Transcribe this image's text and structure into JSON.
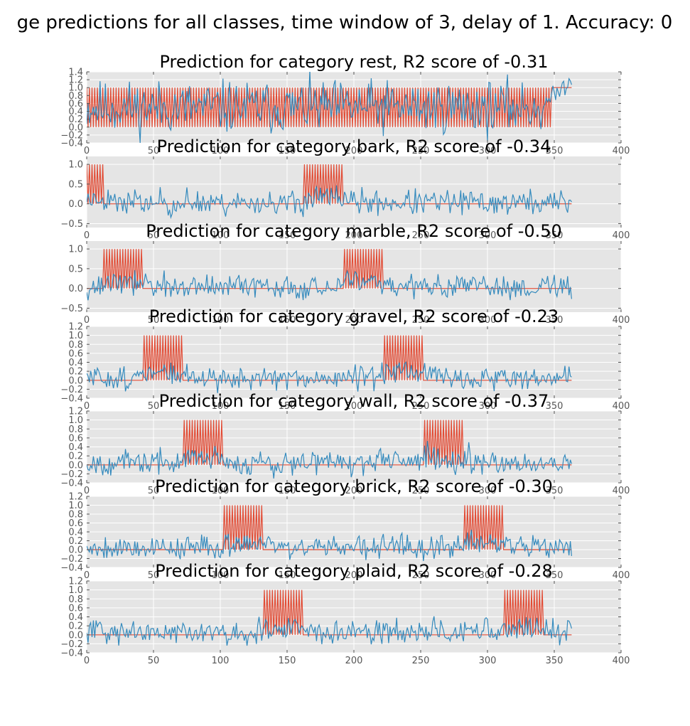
{
  "suptitle": "ge predictions for all classes, time window of 3, delay of 1. Accuracy: 0",
  "colors": {
    "background": "#E5E5E5",
    "grid": "#FFFFFF",
    "truth_line": "#E24A33",
    "prediction_line": "#348ABD",
    "tick_text": "#555555"
  },
  "chart_data": [
    {
      "type": "line",
      "title": "Prediction for category rest, R2 score of -0.31",
      "xlim": [
        0,
        400
      ],
      "ylim": [
        -0.4,
        1.4
      ],
      "xticks": [
        0,
        50,
        100,
        150,
        200,
        250,
        300,
        350,
        400
      ],
      "yticks": [
        -0.4,
        -0.2,
        0.0,
        0.2,
        0.4,
        0.6,
        0.8,
        1.0,
        1.2,
        1.4
      ],
      "grid": true,
      "x": {
        "start": 0,
        "end": 363,
        "step": 1
      },
      "series": [
        {
          "role": "target",
          "color": "#E24A33",
          "pattern": "alternating",
          "on_value": 1,
          "off_value": 0,
          "blocks": [
            {
              "start": 0,
              "end": 348
            }
          ],
          "after": {
            "from": 349,
            "value": 1
          }
        },
        {
          "role": "prediction",
          "color": "#348ABD",
          "kind": "noisy",
          "base": 0.5,
          "amplitude": 0.33,
          "seed": 11,
          "tail": {
            "from": 342,
            "to": 363,
            "start_value": 0.55,
            "end_value": 1.22
          }
        }
      ]
    },
    {
      "type": "line",
      "title": "Prediction for category bark, R2 score of -0.34",
      "xlim": [
        0,
        400
      ],
      "ylim": [
        -0.6,
        1.2
      ],
      "xticks": [
        0,
        50,
        100,
        150,
        200,
        250,
        300,
        350,
        400
      ],
      "yticks": [
        -0.5,
        0.0,
        0.5,
        1.0
      ],
      "grid": true,
      "x": {
        "start": 0,
        "end": 363,
        "step": 1
      },
      "series": [
        {
          "role": "target",
          "color": "#E24A33",
          "pattern": "alternating",
          "on_value": 1,
          "off_value": 0,
          "blocks": [
            {
              "start": 0,
              "end": 12
            },
            {
              "start": 163,
              "end": 191
            }
          ]
        },
        {
          "role": "prediction",
          "color": "#348ABD",
          "kind": "noisy",
          "base": 0.03,
          "amplitude": 0.16,
          "seed": 23,
          "boost": 0.12
        }
      ]
    },
    {
      "type": "line",
      "title": "Prediction for category marble, R2 score of -0.50",
      "xlim": [
        0,
        400
      ],
      "ylim": [
        -0.6,
        1.2
      ],
      "xticks": [
        0,
        50,
        100,
        150,
        200,
        250,
        300,
        350,
        400
      ],
      "yticks": [
        -0.5,
        0.0,
        0.5,
        1.0
      ],
      "grid": true,
      "x": {
        "start": 0,
        "end": 363,
        "step": 1
      },
      "series": [
        {
          "role": "target",
          "color": "#E24A33",
          "pattern": "alternating",
          "on_value": 1,
          "off_value": 0,
          "blocks": [
            {
              "start": 13,
              "end": 41
            },
            {
              "start": 193,
              "end": 221
            }
          ]
        },
        {
          "role": "prediction",
          "color": "#348ABD",
          "kind": "noisy",
          "base": 0.04,
          "amplitude": 0.15,
          "seed": 37,
          "boost": 0.12
        }
      ]
    },
    {
      "type": "line",
      "title": "Prediction for category gravel, R2 score of -0.23",
      "xlim": [
        0,
        400
      ],
      "ylim": [
        -0.4,
        1.2
      ],
      "xticks": [
        0,
        50,
        100,
        150,
        200,
        250,
        300,
        350,
        400
      ],
      "yticks": [
        -0.4,
        -0.2,
        0.0,
        0.2,
        0.4,
        0.6,
        0.8,
        1.0,
        1.2
      ],
      "grid": true,
      "x": {
        "start": 0,
        "end": 363,
        "step": 1
      },
      "series": [
        {
          "role": "target",
          "color": "#E24A33",
          "pattern": "alternating",
          "on_value": 1,
          "off_value": 0,
          "blocks": [
            {
              "start": 43,
              "end": 71
            },
            {
              "start": 223,
              "end": 251
            }
          ]
        },
        {
          "role": "prediction",
          "color": "#348ABD",
          "kind": "noisy",
          "base": 0.05,
          "amplitude": 0.13,
          "seed": 51,
          "boost": 0.12
        }
      ]
    },
    {
      "type": "line",
      "title": "Prediction for category wall, R2 score of -0.37",
      "xlim": [
        0,
        400
      ],
      "ylim": [
        -0.4,
        1.2
      ],
      "xticks": [
        0,
        50,
        100,
        150,
        200,
        250,
        300,
        350,
        400
      ],
      "yticks": [
        -0.4,
        -0.2,
        0.0,
        0.2,
        0.4,
        0.6,
        0.8,
        1.0,
        1.2
      ],
      "grid": true,
      "x": {
        "start": 0,
        "end": 363,
        "step": 1
      },
      "series": [
        {
          "role": "target",
          "color": "#E24A33",
          "pattern": "alternating",
          "on_value": 1,
          "off_value": 0,
          "blocks": [
            {
              "start": 73,
              "end": 101
            },
            {
              "start": 253,
              "end": 281
            }
          ]
        },
        {
          "role": "prediction",
          "color": "#348ABD",
          "kind": "noisy",
          "base": 0.05,
          "amplitude": 0.13,
          "seed": 67,
          "boost": 0.12
        }
      ]
    },
    {
      "type": "line",
      "title": "Prediction for category brick, R2 score of -0.30",
      "xlim": [
        0,
        400
      ],
      "ylim": [
        -0.4,
        1.2
      ],
      "xticks": [
        0,
        50,
        100,
        150,
        200,
        250,
        300,
        350,
        400
      ],
      "yticks": [
        -0.4,
        -0.2,
        0.0,
        0.2,
        0.4,
        0.6,
        0.8,
        1.0,
        1.2
      ],
      "grid": true,
      "x": {
        "start": 0,
        "end": 363,
        "step": 1
      },
      "series": [
        {
          "role": "target",
          "color": "#E24A33",
          "pattern": "alternating",
          "on_value": 1,
          "off_value": 0,
          "blocks": [
            {
              "start": 103,
              "end": 131
            },
            {
              "start": 283,
              "end": 311
            }
          ]
        },
        {
          "role": "prediction",
          "color": "#348ABD",
          "kind": "noisy",
          "base": 0.05,
          "amplitude": 0.13,
          "seed": 79,
          "boost": 0.12
        }
      ]
    },
    {
      "type": "line",
      "title": "Prediction for category plaid, R2 score of -0.28",
      "xlim": [
        0,
        400
      ],
      "ylim": [
        -0.4,
        1.2
      ],
      "xticks": [
        0,
        50,
        100,
        150,
        200,
        250,
        300,
        350,
        400
      ],
      "yticks": [
        -0.4,
        -0.2,
        0.0,
        0.2,
        0.4,
        0.6,
        0.8,
        1.0,
        1.2
      ],
      "grid": true,
      "x": {
        "start": 0,
        "end": 363,
        "step": 1
      },
      "series": [
        {
          "role": "target",
          "color": "#E24A33",
          "pattern": "alternating",
          "on_value": 1,
          "off_value": 0,
          "blocks": [
            {
              "start": 133,
              "end": 161
            },
            {
              "start": 313,
              "end": 341
            }
          ]
        },
        {
          "role": "prediction",
          "color": "#348ABD",
          "kind": "noisy",
          "base": 0.05,
          "amplitude": 0.13,
          "seed": 93,
          "boost": 0.12
        }
      ]
    }
  ]
}
